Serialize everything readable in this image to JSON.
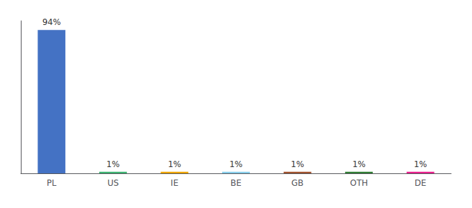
{
  "chart_data": {
    "type": "bar",
    "categories": [
      "PL",
      "US",
      "IE",
      "BE",
      "GB",
      "OTH",
      "DE"
    ],
    "values": [
      94,
      1,
      1,
      1,
      1,
      1,
      1
    ],
    "value_labels": [
      "94%",
      "1%",
      "1%",
      "1%",
      "1%",
      "1%",
      "1%"
    ],
    "colors": [
      "#4472c4",
      "#3cb371",
      "#f0a500",
      "#87ceeb",
      "#a0522d",
      "#2e7d32",
      "#e91e8c"
    ],
    "ylim": [
      0,
      100
    ],
    "grid": false,
    "data_labels": true,
    "tick_labels": "x"
  }
}
